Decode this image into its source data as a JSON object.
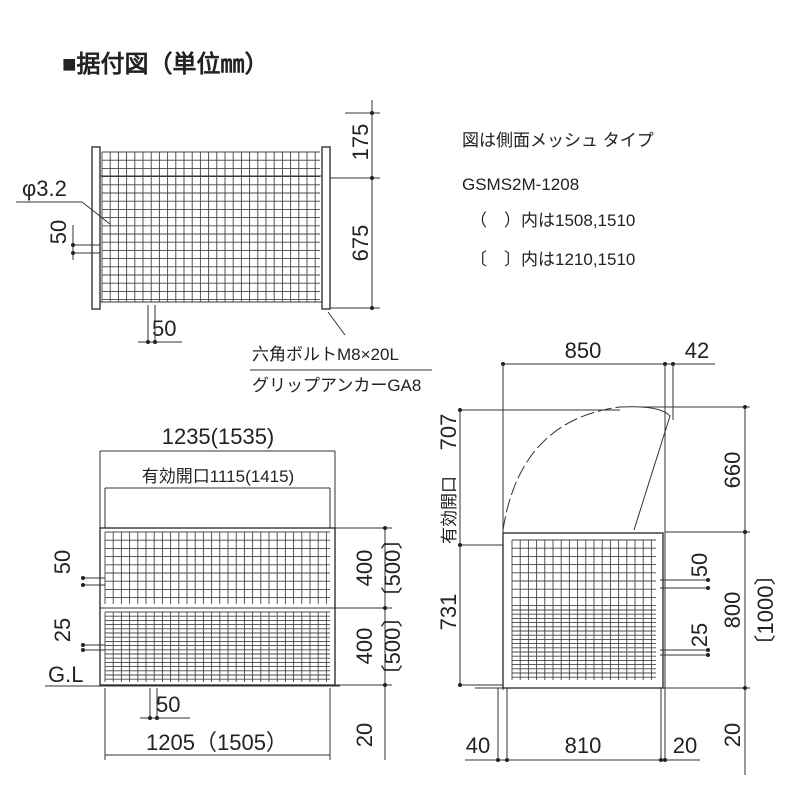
{
  "title": "■据付図（単位㎜）",
  "notes": {
    "line1": "図は側面メッシュ タイプ",
    "model": "GSMS2M-1208",
    "paren_note": "（　）内は1508,1510",
    "bracket_note": "〔　〕内は1210,1510"
  },
  "top_view": {
    "dim_175": "175",
    "dim_675": "675",
    "wire_dia": "φ3.2",
    "mesh_pitch_v": "50",
    "mesh_pitch_h": "50",
    "bolt_label": "六角ボルトM8×20L",
    "anchor_label": "グリップアンカーGA8"
  },
  "front_view": {
    "overall_width": "1235(1535)",
    "opening_width": "有効開口1115(1415)",
    "dim_400_upper": "400",
    "dim_500_upper": "〔500〕",
    "dim_400_lower": "400",
    "dim_500_lower": "〔500〕",
    "pitch_50": "50",
    "pitch_25": "25",
    "ground_line": "G.L",
    "bottom_pitch_50": "50",
    "base_width": "1205（1505）",
    "dim_20": "20"
  },
  "side_view": {
    "depth_850": "850",
    "dim_42": "42",
    "opening_707": "707",
    "opening_label": "有効開口",
    "dim_731": "731",
    "dim_660": "660",
    "dim_800": "800",
    "dim_1000": "〔1000〕",
    "pitch_50": "50",
    "pitch_25": "25",
    "dim_40": "40",
    "dim_810": "810",
    "dim_20_bottom": "20",
    "dim_20_side": "20"
  }
}
